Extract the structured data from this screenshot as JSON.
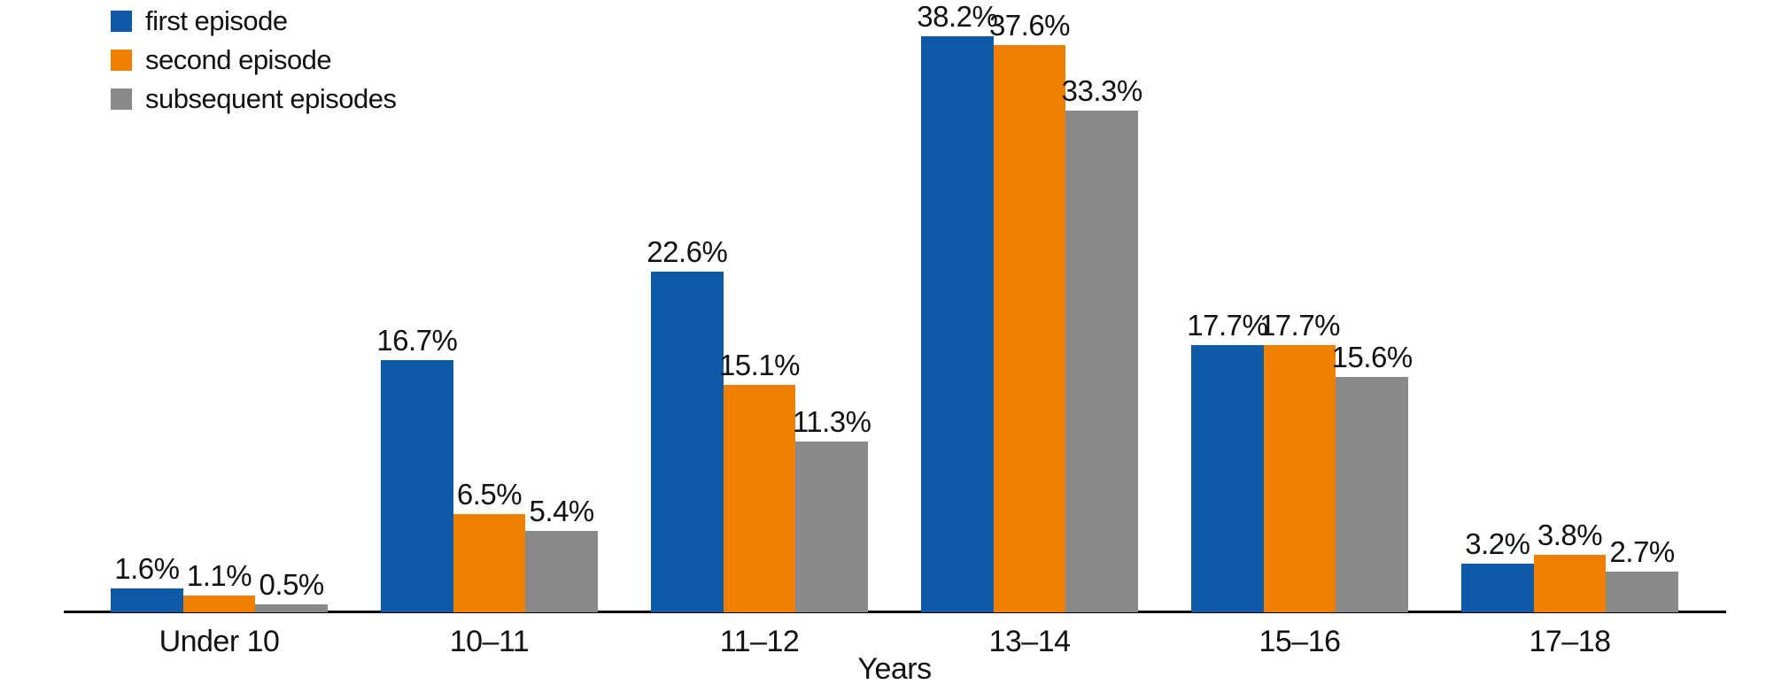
{
  "chart_data": {
    "type": "bar",
    "title": "",
    "xlabel": "Years",
    "ylabel": "",
    "categories": [
      "Under 10",
      "10–11",
      "11–12",
      "13–14",
      "15–16",
      "17–18"
    ],
    "series": [
      {
        "name": "first episode",
        "color": "#0e5aa7",
        "values": [
          1.6,
          16.7,
          22.6,
          38.2,
          17.7,
          3.2
        ]
      },
      {
        "name": "second episode",
        "color": "#ee7f00",
        "values": [
          1.1,
          6.5,
          15.1,
          37.6,
          17.7,
          3.8
        ]
      },
      {
        "name": "subsequent episodes",
        "color": "#898989",
        "values": [
          0.5,
          5.4,
          11.3,
          33.3,
          15.6,
          2.7
        ]
      }
    ],
    "value_suffix": "%",
    "ylim": [
      0,
      40
    ],
    "grid": false,
    "legend_position": "top-left",
    "axis_color": "#000000",
    "label_color": "#111111"
  }
}
